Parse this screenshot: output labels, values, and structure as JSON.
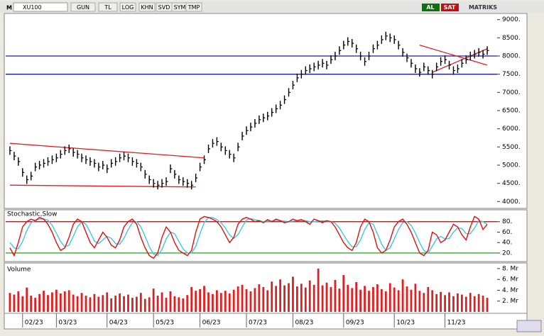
{
  "toolbar": {
    "symbol_mark": "M",
    "symbol": "XU100",
    "buttons": [
      "GUN",
      "TL",
      "LOG",
      "KHN",
      "SVD",
      "SYM",
      "TMP"
    ],
    "buy": "AL",
    "sell": "SAT",
    "brand": "MATRIKS"
  },
  "chart_data": [
    {
      "type": "price",
      "color": "#000000",
      "xlim": [
        -1,
        114
      ],
      "ylim": [
        3850,
        9150
      ],
      "yticks": [
        {
          "value": 4000,
          "label": "4000."
        },
        {
          "value": 4500,
          "label": "4500."
        },
        {
          "value": 5000,
          "label": "5000."
        },
        {
          "value": 5500,
          "label": "5500."
        },
        {
          "value": 6000,
          "label": "6000."
        },
        {
          "value": 6500,
          "label": "6500."
        },
        {
          "value": 7000,
          "label": "7000."
        },
        {
          "value": 7500,
          "label": "7500."
        },
        {
          "value": 8000,
          "label": "8000."
        },
        {
          "value": 8500,
          "label": "8500."
        },
        {
          "value": 9000,
          "label": "9000."
        }
      ],
      "values": [
        5400,
        5250,
        5100,
        4800,
        4600,
        4700,
        4950,
        5000,
        5050,
        5100,
        5150,
        5200,
        5300,
        5400,
        5450,
        5350,
        5300,
        5200,
        5150,
        5100,
        5050,
        4950,
        5000,
        4900,
        5050,
        5100,
        5200,
        5250,
        5200,
        5100,
        5050,
        4950,
        4750,
        4600,
        4500,
        4450,
        4500,
        4550,
        4900,
        4750,
        4600,
        4550,
        4500,
        4450,
        4650,
        4950,
        5150,
        5450,
        5600,
        5650,
        5500,
        5400,
        5300,
        5200,
        5500,
        5800,
        5950,
        6050,
        6150,
        6250,
        6300,
        6350,
        6450,
        6550,
        6650,
        6800,
        7000,
        7200,
        7400,
        7500,
        7600,
        7650,
        7700,
        7750,
        7800,
        7750,
        7900,
        8000,
        8150,
        8300,
        8400,
        8350,
        8200,
        8000,
        7850,
        8000,
        8200,
        8300,
        8450,
        8550,
        8500,
        8450,
        8300,
        8100,
        7950,
        7800,
        7650,
        7550,
        7700,
        7600,
        7500,
        7700,
        7850,
        7900,
        7750,
        7600,
        7650,
        7800,
        7900,
        8000,
        8050,
        8100,
        8050,
        8150
      ],
      "hlines": [
        {
          "value": 8000,
          "color": "#1a1aa0"
        },
        {
          "value": 7500,
          "color": "#1a1aa0"
        }
      ],
      "trendlines": [
        {
          "x": [
            0,
            46
          ],
          "y": [
            5600,
            5200
          ],
          "color": "#e02020"
        },
        {
          "x": [
            0,
            44
          ],
          "y": [
            4450,
            4400
          ],
          "color": "#e02020"
        },
        {
          "x": [
            97,
            113
          ],
          "y": [
            8300,
            7750
          ],
          "color": "#e02020"
        },
        {
          "x": [
            100,
            113
          ],
          "y": [
            7550,
            8200
          ],
          "color": "#e02020"
        }
      ]
    },
    {
      "type": "line",
      "title": "Stochastic,Slow",
      "xlim": [
        -1,
        114
      ],
      "ylim": [
        5,
        100
      ],
      "yticks": [
        {
          "value": 20,
          "label": "20."
        },
        {
          "value": 40,
          "label": "40."
        },
        {
          "value": 60,
          "label": "60."
        },
        {
          "value": 80,
          "label": "80."
        }
      ],
      "levels": [
        {
          "value": 80,
          "color": "#8b1010"
        },
        {
          "value": 20,
          "color": "#109010"
        }
      ],
      "series": [
        {
          "color": "#e01010",
          "values": [
            30,
            15,
            40,
            70,
            80,
            85,
            82,
            88,
            85,
            75,
            60,
            40,
            25,
            30,
            50,
            75,
            85,
            80,
            60,
            40,
            30,
            45,
            60,
            50,
            35,
            30,
            45,
            70,
            80,
            85,
            75,
            50,
            30,
            15,
            10,
            20,
            50,
            70,
            60,
            40,
            25,
            20,
            15,
            25,
            60,
            85,
            90,
            88,
            85,
            80,
            70,
            55,
            40,
            50,
            75,
            85,
            88,
            85,
            80,
            82,
            78,
            84,
            80,
            85,
            82,
            78,
            80,
            85,
            82,
            84,
            80,
            75,
            85,
            82,
            78,
            82,
            80,
            70,
            55,
            40,
            30,
            25,
            40,
            70,
            85,
            80,
            60,
            30,
            20,
            25,
            45,
            70,
            80,
            85,
            75,
            60,
            40,
            20,
            15,
            25,
            60,
            55,
            40,
            45,
            60,
            75,
            70,
            55,
            45,
            70,
            90,
            85,
            65,
            75
          ]
        },
        {
          "color": "#40c8e0",
          "values": [
            40,
            30,
            28,
            42,
            63,
            78,
            82,
            85,
            85,
            83,
            73,
            58,
            42,
            32,
            35,
            52,
            70,
            80,
            75,
            60,
            43,
            38,
            45,
            52,
            48,
            38,
            37,
            48,
            65,
            78,
            80,
            70,
            52,
            32,
            18,
            15,
            27,
            47,
            60,
            57,
            42,
            28,
            20,
            20,
            33,
            57,
            78,
            88,
            88,
            84,
            78,
            68,
            55,
            48,
            55,
            70,
            83,
            86,
            84,
            82,
            80,
            81,
            81,
            83,
            82,
            81,
            80,
            81,
            82,
            83,
            82,
            80,
            80,
            81,
            82,
            81,
            80,
            77,
            68,
            55,
            42,
            32,
            32,
            45,
            65,
            78,
            75,
            57,
            37,
            25,
            30,
            47,
            65,
            78,
            80,
            73,
            58,
            40,
            25,
            20,
            33,
            47,
            52,
            47,
            48,
            60,
            68,
            67,
            57,
            57,
            68,
            82,
            80,
            75
          ]
        }
      ]
    },
    {
      "type": "bar",
      "title": "Volume",
      "color": "#e02020",
      "xlim": [
        -1,
        114
      ],
      "ylim": [
        0,
        8.9
      ],
      "yticks": [
        {
          "value": 2,
          "label": "2. Mr"
        },
        {
          "value": 4,
          "label": "4. Mr"
        },
        {
          "value": 6,
          "label": "6. Mr"
        },
        {
          "value": 8,
          "label": "8. Mr"
        }
      ],
      "xticks": [
        {
          "value": 3,
          "label": "02/23"
        },
        {
          "value": 11,
          "label": "03/23"
        },
        {
          "value": 23,
          "label": "04/23"
        },
        {
          "value": 34,
          "label": "05/23"
        },
        {
          "value": 45,
          "label": "06/23"
        },
        {
          "value": 56,
          "label": "07/23"
        },
        {
          "value": 67,
          "label": "08/23"
        },
        {
          "value": 79,
          "label": "09/23"
        },
        {
          "value": 91,
          "label": "10/23"
        },
        {
          "value": 103,
          "label": "11/23"
        }
      ],
      "values": [
        3.5,
        3.2,
        3.8,
        2.9,
        4.5,
        3.0,
        2.6,
        3.3,
        3.9,
        3.1,
        3.6,
        4.1,
        3.4,
        3.8,
        4.0,
        3.2,
        2.9,
        3.5,
        3.0,
        2.7,
        3.3,
        2.8,
        3.1,
        3.6,
        2.5,
        3.0,
        3.4,
        2.9,
        3.2,
        2.6,
        2.8,
        3.5,
        2.4,
        2.7,
        4.3,
        3.0,
        3.6,
        2.6,
        3.8,
        2.9,
        2.7,
        2.5,
        3.1,
        4.6,
        3.9,
        4.2,
        4.8,
        3.6,
        3.3,
        4.0,
        3.5,
        3.9,
        3.4,
        4.1,
        4.7,
        5.0,
        4.2,
        3.8,
        4.4,
        5.1,
        4.6,
        4.0,
        5.6,
        4.8,
        6.0,
        4.9,
        5.3,
        6.5,
        4.7,
        5.2,
        4.5,
        5.8,
        5.0,
        8.0,
        4.9,
        5.4,
        4.6,
        5.9,
        4.3,
        6.8,
        5.0,
        4.4,
        5.5,
        4.1,
        4.8,
        3.9,
        4.6,
        5.1,
        4.2,
        3.8,
        5.3,
        4.5,
        4.0,
        6.0,
        4.7,
        4.1,
        5.2,
        3.9,
        3.5,
        4.6,
        4.0,
        3.3,
        3.7,
        3.1,
        3.6,
        2.9,
        3.4,
        3.2,
        2.8,
        3.5,
        2.9,
        3.3,
        3.0,
        2.6
      ]
    }
  ]
}
